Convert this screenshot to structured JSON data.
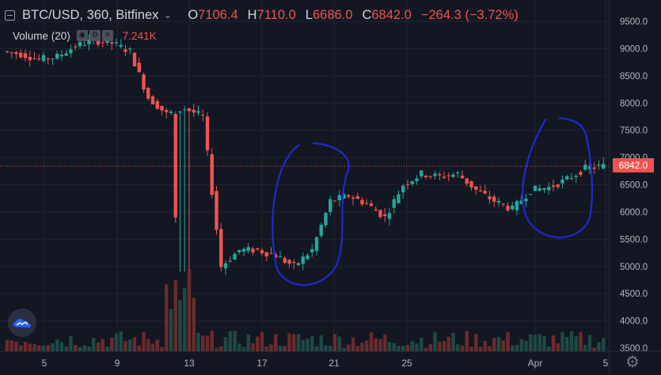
{
  "header": {
    "symbol": "BTC/USD, 360, Bitfinex",
    "open_label": "O",
    "open_value": "7106.4",
    "high_label": "H",
    "high_value": "7110.0",
    "low_label": "L",
    "low_value": "6686.0",
    "close_label": "C",
    "close_value": "6842.0",
    "change": "−264.3 (−3.72%)"
  },
  "volume_indicator": {
    "label": "Volume (20)",
    "value": "7.241K"
  },
  "price_tag": "6842.0",
  "colors": {
    "background": "#131722",
    "up": "#26a69a",
    "down": "#ef5350",
    "drawing": "#1e2ad0",
    "grid": "#1f2433"
  },
  "icons": {
    "logo": "tradingview-cloud-icon",
    "settings": "gear-icon"
  },
  "chart_data": {
    "type": "candlestick",
    "y_axis_ticks": [
      "9500.0",
      "9000.0",
      "8500.0",
      "8000.0",
      "7500.0",
      "7000.0",
      "6500.0",
      "6000.0",
      "5500.0",
      "5000.0",
      "4500.0",
      "4000.0",
      "3500.0"
    ],
    "y_range": [
      3500,
      9700
    ],
    "x_axis_ticks": [
      "5",
      "9",
      "13",
      "17",
      "21",
      "25",
      "Apr",
      "5"
    ],
    "current_price": 6842.0,
    "points": [
      {
        "t": "Mar 2",
        "close": 8900
      },
      {
        "t": "Mar 3",
        "close": 8800
      },
      {
        "t": "Mar 4",
        "close": 8850
      },
      {
        "t": "Mar 5",
        "close": 9050
      },
      {
        "t": "Mar 6",
        "close": 9150
      },
      {
        "t": "Mar 7",
        "close": 9100
      },
      {
        "t": "Mar 8",
        "close": 8950
      },
      {
        "t": "Mar 9",
        "close": 8100
      },
      {
        "t": "Mar 10",
        "close": 7800
      },
      {
        "t": "Mar 11",
        "close": 7900
      },
      {
        "t": "Mar 12",
        "close": 7750
      },
      {
        "t": "Mar 13",
        "close": 5000
      },
      {
        "t": "Mar 14",
        "close": 5300
      },
      {
        "t": "Mar 15",
        "close": 5300
      },
      {
        "t": "Mar 16",
        "close": 5200
      },
      {
        "t": "Mar 17",
        "close": 5000
      },
      {
        "t": "Mar 18",
        "close": 5300
      },
      {
        "t": "Mar 19",
        "close": 6200
      },
      {
        "t": "Mar 20",
        "close": 6300
      },
      {
        "t": "Mar 21",
        "close": 6150
      },
      {
        "t": "Mar 22",
        "close": 5900
      },
      {
        "t": "Mar 23",
        "close": 6500
      },
      {
        "t": "Mar 24",
        "close": 6700
      },
      {
        "t": "Mar 25",
        "close": 6650
      },
      {
        "t": "Mar 26",
        "close": 6700
      },
      {
        "t": "Mar 27",
        "close": 6400
      },
      {
        "t": "Mar 28",
        "close": 6200
      },
      {
        "t": "Mar 29",
        "close": 6050
      },
      {
        "t": "Mar 30",
        "close": 6400
      },
      {
        "t": "Mar 31",
        "close": 6450
      },
      {
        "t": "Apr 1",
        "close": 6600
      },
      {
        "t": "Apr 2",
        "close": 6800
      },
      {
        "t": "Apr 3",
        "close": 6842
      }
    ]
  }
}
